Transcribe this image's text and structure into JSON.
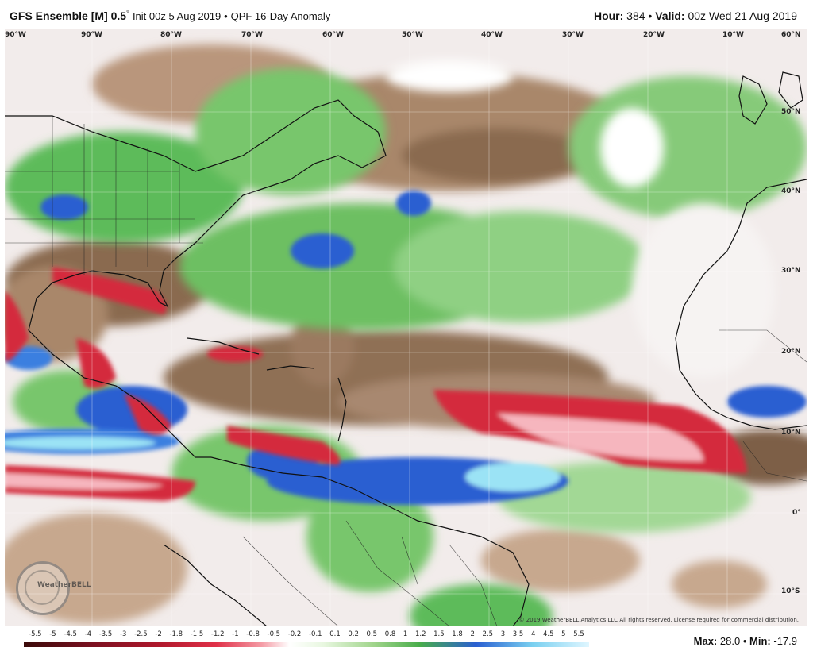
{
  "header": {
    "model": "GFS Ensemble [M] 0.5",
    "degree": "°",
    "init": "Init 00z 5 Aug 2019",
    "separator": "•",
    "product": "QPF 16-Day Anomaly",
    "hour_label": "Hour:",
    "hour_value": "384",
    "valid_label": "Valid:",
    "valid_value": "00z Wed 21 Aug 2019"
  },
  "map": {
    "lon_labels": [
      "90°W",
      "90°W",
      "80°W",
      "70°W",
      "60°W",
      "50°W",
      "40°W",
      "30°W",
      "20°W",
      "10°W",
      "60°N"
    ],
    "lat_labels": [
      "50°N",
      "40°N",
      "30°N",
      "20°N",
      "10°N",
      "0°",
      "10°S"
    ],
    "credit": "© 2019 WeatherBELL Analytics LLC All rights reserved. License required for commercial distribution.",
    "logo_text": "WeatherBELL",
    "colors": {
      "dry_brown": "#8a6a50",
      "light_brown": "#c7a88e",
      "wet_green": "#48ad4a",
      "light_green": "#9fd48a",
      "blue": "#2a5fd1",
      "cyan": "#9be3f5",
      "red": "#d42a3c",
      "pink": "#f6b6be"
    }
  },
  "colorbar": {
    "labels": [
      "-5.5",
      "-5",
      "-4.5",
      "-4",
      "-3.5",
      "-3",
      "-2.5",
      "-2",
      "-1.8",
      "-1.5",
      "-1.2",
      "-1",
      "-0.8",
      "-0.5",
      "-0.2",
      "-0.1",
      "0.1",
      "0.2",
      "0.5",
      "0.8",
      "1",
      "1.2",
      "1.5",
      "1.8",
      "2",
      "2.5",
      "3",
      "3.5",
      "4",
      "4.5",
      "5",
      "5.5"
    ]
  },
  "stats": {
    "max_label": "Max:",
    "max_value": "28.0",
    "separator": "•",
    "min_label": "Min:",
    "min_value": "-17.9"
  }
}
